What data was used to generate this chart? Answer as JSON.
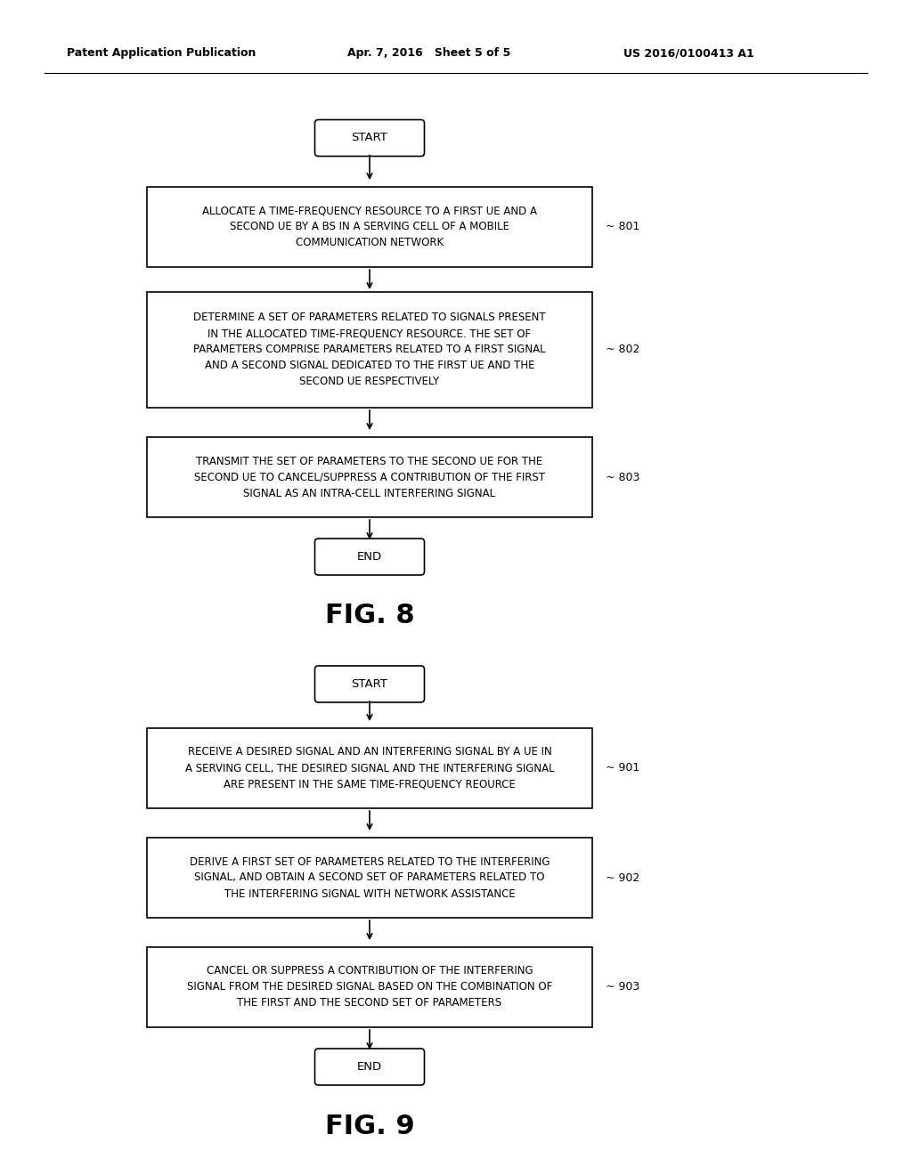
{
  "header_left": "Patent Application Publication",
  "header_mid": "Apr. 7, 2016   Sheet 5 of 5",
  "header_right": "US 2016/0100413 A1",
  "fig8_title": "FIG. 8",
  "fig9_title": "FIG. 9",
  "fig8": {
    "start_label": "START",
    "end_label": "END",
    "steps": [
      {
        "id": "801",
        "text": "ALLOCATE A TIME-FREQUENCY RESOURCE TO A FIRST UE AND A\nSECOND UE BY A BS IN A SERVING CELL OF A MOBILE\nCOMMUNICATION NETWORK"
      },
      {
        "id": "802",
        "text": "DETERMINE A SET OF PARAMETERS RELATED TO SIGNALS PRESENT\nIN THE ALLOCATED TIME-FREQUENCY RESOURCE. THE SET OF\nPARAMETERS COMPRISE PARAMETERS RELATED TO A FIRST SIGNAL\nAND A SECOND SIGNAL DEDICATED TO THE FIRST UE AND THE\nSECOND UE RESPECTIVELY"
      },
      {
        "id": "803",
        "text": "TRANSMIT THE SET OF PARAMETERS TO THE SECOND UE FOR THE\nSECOND UE TO CANCEL/SUPPRESS A CONTRIBUTION OF THE FIRST\nSIGNAL AS AN INTRA-CELL INTERFERING SIGNAL"
      }
    ]
  },
  "fig9": {
    "start_label": "START",
    "end_label": "END",
    "steps": [
      {
        "id": "901",
        "text": "RECEIVE A DESIRED SIGNAL AND AN INTERFERING SIGNAL BY A UE IN\nA SERVING CELL, THE DESIRED SIGNAL AND THE INTERFERING SIGNAL\nARE PRESENT IN THE SAME TIME-FREQUENCY REOURCE"
      },
      {
        "id": "902",
        "text": "DERIVE A FIRST SET OF PARAMETERS RELATED TO THE INTERFERING\nSIGNAL, AND OBTAIN A SECOND SET OF PARAMETERS RELATED TO\nTHE INTERFERING SIGNAL WITH NETWORK ASSISTANCE"
      },
      {
        "id": "903",
        "text": "CANCEL OR SUPPRESS A CONTRIBUTION OF THE INTERFERING\nSIGNAL FROM THE DESIRED SIGNAL BASED ON THE COMBINATION OF\nTHE FIRST AND THE SECOND SET OF PARAMETERS"
      }
    ]
  }
}
